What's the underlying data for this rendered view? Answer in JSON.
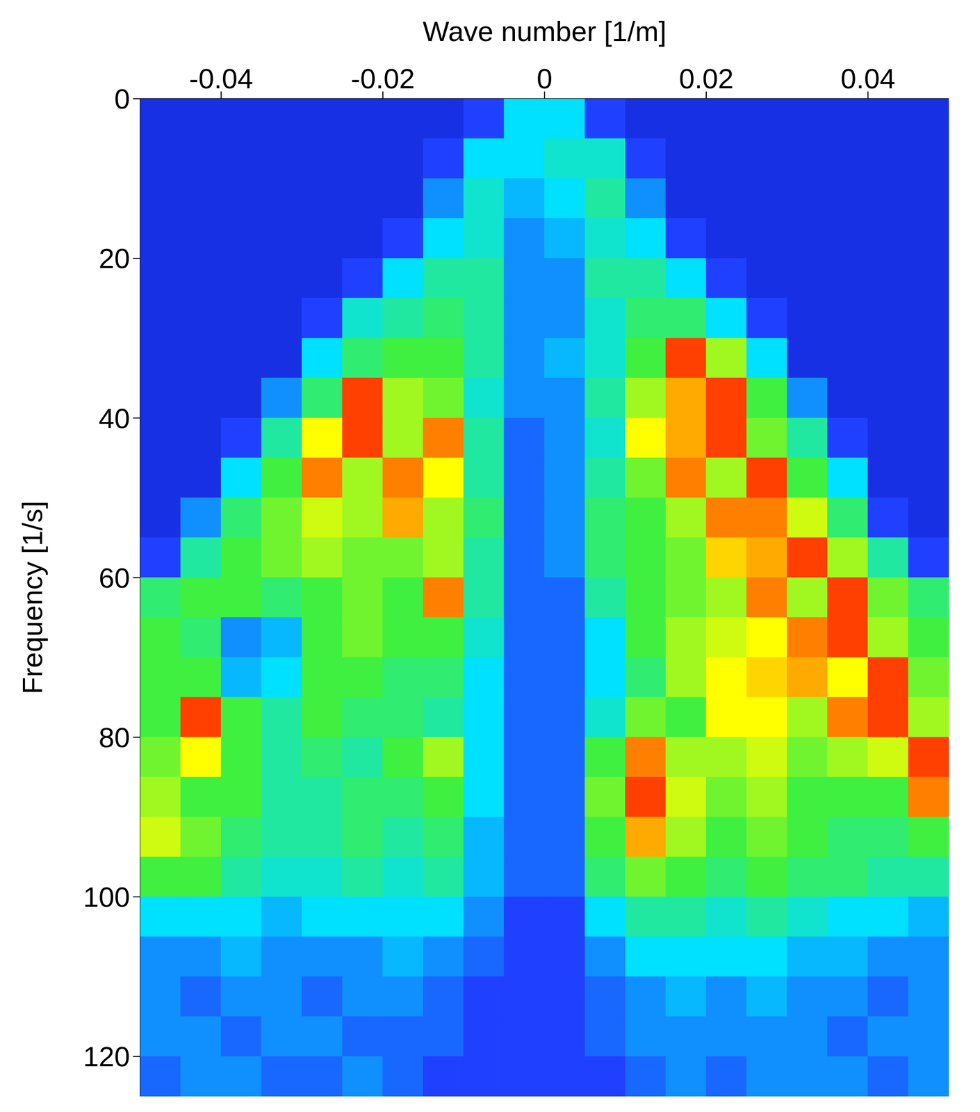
{
  "chart_data": {
    "type": "heatmap",
    "x_label": "Wave number [1/m]",
    "y_label": "Frequency [1/s]",
    "xlim": [
      -0.05,
      0.05
    ],
    "ylim": [
      0,
      125
    ],
    "xticks": [
      -0.04,
      -0.02,
      0,
      0.02,
      0.04
    ],
    "yticks": [
      0,
      20,
      40,
      60,
      80,
      100,
      120
    ],
    "x": [
      -0.0475,
      -0.0425,
      -0.0375,
      -0.0325,
      -0.0275,
      -0.0225,
      -0.0175,
      -0.0125,
      -0.0075,
      -0.0025,
      0.0025,
      0.0075,
      0.0125,
      0.0175,
      0.0225,
      0.0275,
      0.0325,
      0.0375,
      0.0425,
      0.0475
    ],
    "y": [
      2.5,
      7.5,
      12.5,
      17.5,
      22.5,
      27.5,
      32.5,
      37.5,
      42.5,
      47.5,
      52.5,
      57.5,
      62.5,
      67.5,
      72.5,
      77.5,
      82.5,
      87.5,
      92.5,
      97.5,
      102.5,
      107.5,
      112.5,
      117.5,
      122.5
    ],
    "cells": [
      [
        0.05,
        0.05,
        0.05,
        0.05,
        0.05,
        0.05,
        0.05,
        0.05,
        0.1,
        0.3,
        0.3,
        0.1,
        0.05,
        0.05,
        0.05,
        0.05,
        0.05,
        0.05,
        0.05,
        0.05
      ],
      [
        0.05,
        0.05,
        0.05,
        0.05,
        0.05,
        0.05,
        0.05,
        0.1,
        0.3,
        0.3,
        0.35,
        0.35,
        0.1,
        0.05,
        0.05,
        0.05,
        0.05,
        0.05,
        0.05,
        0.05
      ],
      [
        0.05,
        0.05,
        0.05,
        0.05,
        0.05,
        0.05,
        0.05,
        0.2,
        0.35,
        0.25,
        0.3,
        0.4,
        0.2,
        0.05,
        0.05,
        0.05,
        0.05,
        0.05,
        0.05,
        0.05
      ],
      [
        0.05,
        0.05,
        0.05,
        0.05,
        0.05,
        0.05,
        0.1,
        0.3,
        0.35,
        0.2,
        0.25,
        0.35,
        0.3,
        0.1,
        0.05,
        0.05,
        0.05,
        0.05,
        0.05,
        0.05
      ],
      [
        0.05,
        0.05,
        0.05,
        0.05,
        0.05,
        0.1,
        0.3,
        0.4,
        0.4,
        0.2,
        0.2,
        0.4,
        0.4,
        0.3,
        0.1,
        0.05,
        0.05,
        0.05,
        0.05,
        0.05
      ],
      [
        0.05,
        0.05,
        0.05,
        0.05,
        0.1,
        0.35,
        0.4,
        0.45,
        0.4,
        0.2,
        0.2,
        0.35,
        0.45,
        0.45,
        0.3,
        0.1,
        0.05,
        0.05,
        0.05,
        0.05
      ],
      [
        0.05,
        0.05,
        0.05,
        0.05,
        0.3,
        0.45,
        0.5,
        0.5,
        0.4,
        0.2,
        0.25,
        0.35,
        0.5,
        0.9,
        0.6,
        0.3,
        0.05,
        0.05,
        0.05,
        0.05
      ],
      [
        0.05,
        0.05,
        0.05,
        0.2,
        0.45,
        0.9,
        0.6,
        0.55,
        0.35,
        0.2,
        0.2,
        0.4,
        0.6,
        0.8,
        0.9,
        0.5,
        0.2,
        0.05,
        0.05,
        0.05
      ],
      [
        0.05,
        0.05,
        0.1,
        0.4,
        0.7,
        0.9,
        0.6,
        0.85,
        0.4,
        0.15,
        0.2,
        0.35,
        0.7,
        0.8,
        0.9,
        0.55,
        0.4,
        0.1,
        0.05,
        0.05
      ],
      [
        0.05,
        0.05,
        0.3,
        0.5,
        0.85,
        0.6,
        0.85,
        0.7,
        0.4,
        0.15,
        0.2,
        0.4,
        0.55,
        0.85,
        0.6,
        0.9,
        0.5,
        0.3,
        0.05,
        0.05
      ],
      [
        0.05,
        0.2,
        0.45,
        0.55,
        0.65,
        0.6,
        0.8,
        0.6,
        0.45,
        0.15,
        0.2,
        0.45,
        0.5,
        0.6,
        0.85,
        0.85,
        0.65,
        0.45,
        0.1,
        0.05
      ],
      [
        0.1,
        0.4,
        0.5,
        0.55,
        0.6,
        0.55,
        0.55,
        0.6,
        0.4,
        0.15,
        0.2,
        0.45,
        0.5,
        0.55,
        0.75,
        0.8,
        0.9,
        0.6,
        0.4,
        0.1
      ],
      [
        0.45,
        0.5,
        0.5,
        0.45,
        0.5,
        0.55,
        0.5,
        0.85,
        0.4,
        0.15,
        0.15,
        0.4,
        0.5,
        0.55,
        0.6,
        0.85,
        0.6,
        0.9,
        0.55,
        0.45
      ],
      [
        0.5,
        0.45,
        0.2,
        0.25,
        0.5,
        0.55,
        0.5,
        0.5,
        0.35,
        0.15,
        0.15,
        0.3,
        0.5,
        0.6,
        0.65,
        0.7,
        0.85,
        0.9,
        0.6,
        0.5
      ],
      [
        0.5,
        0.5,
        0.25,
        0.3,
        0.5,
        0.5,
        0.45,
        0.45,
        0.3,
        0.15,
        0.15,
        0.3,
        0.45,
        0.6,
        0.7,
        0.75,
        0.8,
        0.7,
        0.9,
        0.55
      ],
      [
        0.5,
        0.9,
        0.5,
        0.4,
        0.5,
        0.45,
        0.45,
        0.4,
        0.3,
        0.15,
        0.15,
        0.35,
        0.55,
        0.5,
        0.7,
        0.7,
        0.6,
        0.85,
        0.9,
        0.6
      ],
      [
        0.55,
        0.7,
        0.5,
        0.4,
        0.45,
        0.4,
        0.5,
        0.6,
        0.3,
        0.15,
        0.15,
        0.5,
        0.85,
        0.6,
        0.6,
        0.65,
        0.55,
        0.6,
        0.65,
        0.9
      ],
      [
        0.6,
        0.5,
        0.5,
        0.4,
        0.4,
        0.45,
        0.45,
        0.5,
        0.3,
        0.15,
        0.15,
        0.55,
        0.9,
        0.65,
        0.55,
        0.6,
        0.5,
        0.5,
        0.5,
        0.85
      ],
      [
        0.65,
        0.55,
        0.45,
        0.4,
        0.4,
        0.45,
        0.4,
        0.45,
        0.25,
        0.15,
        0.15,
        0.5,
        0.8,
        0.6,
        0.5,
        0.55,
        0.5,
        0.45,
        0.45,
        0.5
      ],
      [
        0.5,
        0.5,
        0.4,
        0.35,
        0.35,
        0.4,
        0.35,
        0.4,
        0.25,
        0.15,
        0.15,
        0.45,
        0.55,
        0.5,
        0.45,
        0.5,
        0.45,
        0.45,
        0.4,
        0.4
      ],
      [
        0.3,
        0.3,
        0.3,
        0.25,
        0.3,
        0.3,
        0.3,
        0.3,
        0.2,
        0.1,
        0.1,
        0.3,
        0.4,
        0.4,
        0.35,
        0.4,
        0.35,
        0.3,
        0.3,
        0.25
      ],
      [
        0.2,
        0.2,
        0.25,
        0.2,
        0.2,
        0.2,
        0.25,
        0.2,
        0.15,
        0.1,
        0.1,
        0.2,
        0.3,
        0.3,
        0.3,
        0.3,
        0.25,
        0.25,
        0.2,
        0.2
      ],
      [
        0.2,
        0.15,
        0.2,
        0.2,
        0.15,
        0.2,
        0.2,
        0.15,
        0.1,
        0.1,
        0.1,
        0.15,
        0.2,
        0.25,
        0.2,
        0.25,
        0.2,
        0.2,
        0.15,
        0.2
      ],
      [
        0.2,
        0.2,
        0.15,
        0.2,
        0.2,
        0.15,
        0.15,
        0.15,
        0.1,
        0.1,
        0.1,
        0.15,
        0.2,
        0.2,
        0.2,
        0.2,
        0.2,
        0.15,
        0.2,
        0.2
      ],
      [
        0.15,
        0.2,
        0.2,
        0.15,
        0.15,
        0.2,
        0.15,
        0.1,
        0.1,
        0.1,
        0.1,
        0.1,
        0.15,
        0.2,
        0.15,
        0.2,
        0.2,
        0.2,
        0.15,
        0.2
      ]
    ]
  }
}
